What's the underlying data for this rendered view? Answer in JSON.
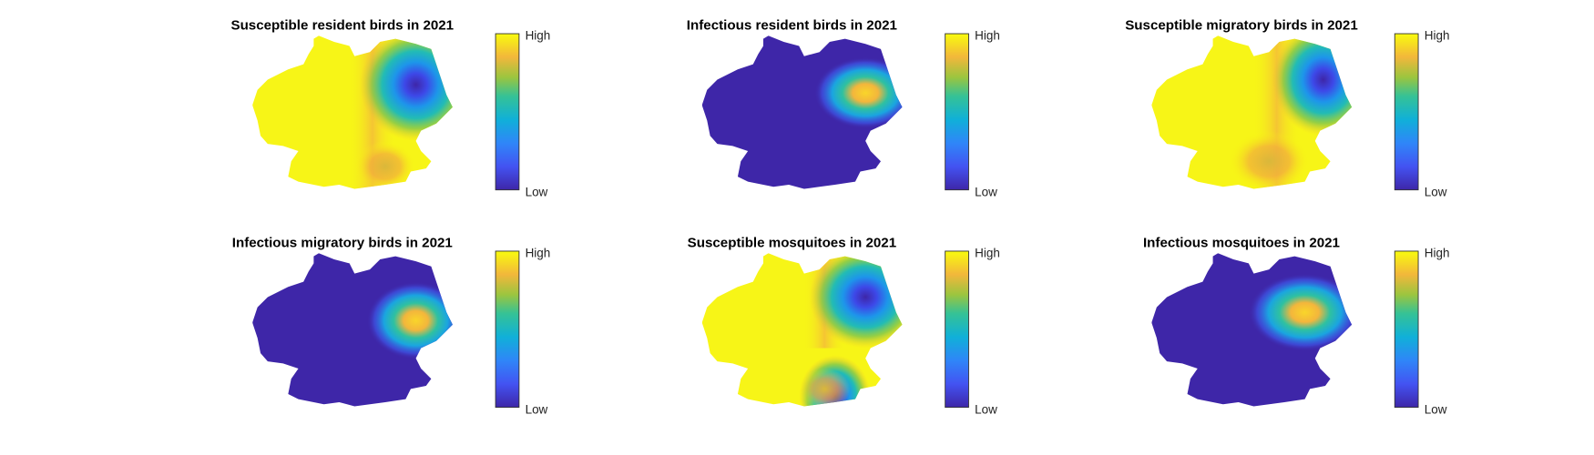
{
  "panels": [
    {
      "title": "Susceptible resident birds in 2021",
      "colorbar": {
        "high": "High",
        "low": "Low"
      }
    },
    {
      "title": "Infectious resident birds in 2021",
      "colorbar": {
        "high": "High",
        "low": "Low"
      }
    },
    {
      "title": "Susceptible migratory birds in 2021",
      "colorbar": {
        "high": "High",
        "low": "Low"
      }
    },
    {
      "title": "Infectious migratory birds in 2021",
      "colorbar": {
        "high": "High",
        "low": "Low"
      }
    },
    {
      "title": "Susceptible mosquitoes in 2021",
      "colorbar": {
        "high": "High",
        "low": "Low"
      }
    },
    {
      "title": "Infectious mosquitoes in 2021",
      "colorbar": {
        "high": "High",
        "low": "Low"
      }
    }
  ]
}
